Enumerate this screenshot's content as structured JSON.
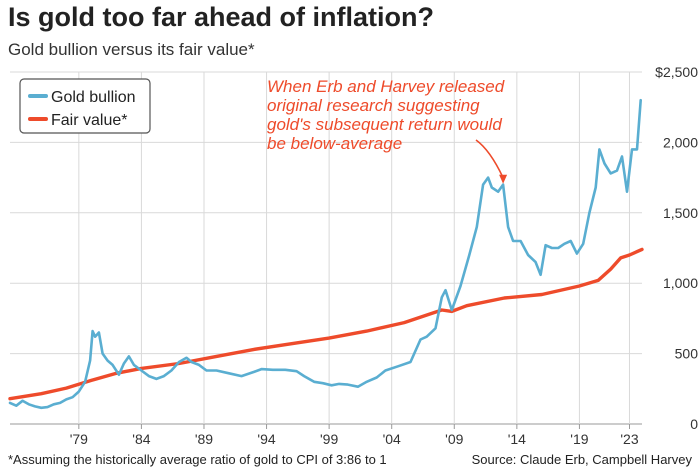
{
  "title": "Is gold too far ahead of inflation?",
  "subtitle": "Gold bullion versus its fair value*",
  "footnote": "*Assuming the historically average ratio of gold to CPI of 3:86 to 1",
  "source": "Source: Claude Erb, Campbell Harvey",
  "colors": {
    "gold": "#5aaed1",
    "fair": "#ee4b2b",
    "grid": "#d9d9d9",
    "annotation": "#ee4b2b"
  },
  "chart_data": {
    "type": "line",
    "x_tick_labels": [
      "'79",
      "'84",
      "'89",
      "'94",
      "'99",
      "'04",
      "'09",
      "'14",
      "'19",
      "'23"
    ],
    "x_tick_years": [
      1979,
      1984,
      1989,
      1994,
      1999,
      2004,
      2009,
      2014,
      2019,
      2023
    ],
    "xlim": [
      1973.5,
      2024.0
    ],
    "y_tick_labels": [
      "0",
      "500",
      "1,000",
      "1,500",
      "2,000",
      "$2,500"
    ],
    "y_tick_values": [
      0,
      500,
      1000,
      1500,
      2000,
      2500
    ],
    "ylim": [
      0,
      2500
    ],
    "grid": true,
    "legend_position": "top-left",
    "annotation": {
      "lines": [
        "When Erb and Harvey released",
        "original research suggesting",
        "gold's subsequent return would",
        "be below-average"
      ],
      "arrow_target": [
        2012.9,
        1600
      ]
    },
    "series": [
      {
        "name": "Gold bullion",
        "x": [
          1973.5,
          1974.0,
          1974.5,
          1975.0,
          1975.5,
          1976.0,
          1976.5,
          1977.0,
          1977.5,
          1978.0,
          1978.5,
          1979.0,
          1979.5,
          1979.9,
          1980.1,
          1980.3,
          1980.6,
          1980.9,
          1981.3,
          1981.7,
          1982.2,
          1982.6,
          1983.0,
          1983.4,
          1984.0,
          1984.6,
          1985.2,
          1985.8,
          1986.4,
          1987.0,
          1987.6,
          1988.0,
          1988.6,
          1989.2,
          1990.0,
          1991.0,
          1992.0,
          1993.0,
          1993.6,
          1994.5,
          1995.5,
          1996.4,
          1997.0,
          1997.8,
          1998.5,
          1999.2,
          1999.8,
          2000.5,
          2001.3,
          2002.0,
          2002.8,
          2003.5,
          2004.5,
          2005.5,
          2006.3,
          2006.8,
          2007.5,
          2008.0,
          2008.3,
          2008.8,
          2009.5,
          2010.2,
          2010.8,
          2011.3,
          2011.7,
          2012.0,
          2012.5,
          2012.9,
          2013.3,
          2013.7,
          2014.3,
          2014.9,
          2015.5,
          2015.9,
          2016.3,
          2016.8,
          2017.3,
          2017.8,
          2018.3,
          2018.8,
          2019.3,
          2019.8,
          2020.3,
          2020.6,
          2021.0,
          2021.5,
          2022.0,
          2022.4,
          2022.8,
          2023.2,
          2023.6,
          2023.9
        ],
        "values": [
          150,
          130,
          165,
          140,
          125,
          115,
          120,
          140,
          150,
          175,
          190,
          230,
          300,
          450,
          660,
          620,
          650,
          500,
          450,
          420,
          350,
          430,
          480,
          420,
          380,
          340,
          320,
          340,
          380,
          440,
          470,
          440,
          420,
          380,
          380,
          360,
          340,
          370,
          390,
          385,
          385,
          375,
          340,
          300,
          290,
          275,
          285,
          280,
          265,
          300,
          330,
          380,
          410,
          440,
          600,
          620,
          680,
          900,
          950,
          810,
          980,
          1200,
          1400,
          1700,
          1750,
          1680,
          1650,
          1700,
          1400,
          1300,
          1300,
          1200,
          1150,
          1060,
          1270,
          1250,
          1250,
          1280,
          1300,
          1210,
          1280,
          1500,
          1680,
          1950,
          1850,
          1780,
          1800,
          1900,
          1650,
          1950,
          1950,
          2300
        ]
      },
      {
        "name": "Fair value*",
        "x": [
          1973.5,
          1976.0,
          1978.0,
          1980.0,
          1982.0,
          1984.0,
          1987.0,
          1990.0,
          1993.0,
          1996.0,
          1999.0,
          2002.0,
          2005.0,
          2008.0,
          2008.8,
          2010.0,
          2013.0,
          2016.0,
          2019.0,
          2020.5,
          2021.5,
          2022.3,
          2023.0,
          2024.0
        ],
        "values": [
          180,
          215,
          255,
          310,
          360,
          395,
          430,
          480,
          530,
          570,
          610,
          660,
          720,
          810,
          800,
          840,
          895,
          920,
          980,
          1020,
          1100,
          1180,
          1200,
          1240
        ]
      }
    ]
  }
}
